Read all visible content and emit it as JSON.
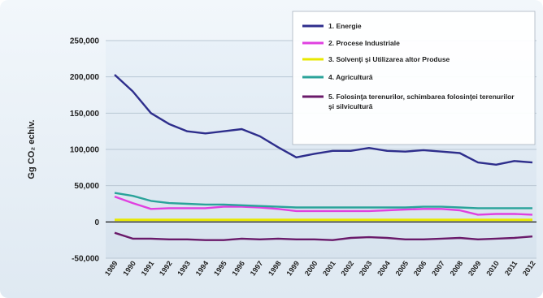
{
  "chart_data": {
    "type": "line",
    "title": "",
    "xlabel": "",
    "ylabel": "Gg CO₂ echiv.",
    "ylim": [
      -50000,
      250000
    ],
    "yticks": [
      "250,000",
      "200,000",
      "150,000",
      "100,000",
      "50,000",
      "0",
      "-50,000"
    ],
    "x": [
      1989,
      1990,
      1991,
      1992,
      1993,
      1994,
      1995,
      1996,
      1997,
      1998,
      1999,
      2000,
      2001,
      2002,
      2003,
      2004,
      2005,
      2006,
      2007,
      2008,
      2009,
      2010,
      2011,
      2012
    ],
    "grid": true,
    "legend_position": "top-right",
    "series": [
      {
        "name": "1. Energie",
        "color": "#2e2e8c",
        "values": [
          203000,
          180000,
          150000,
          135000,
          125000,
          122000,
          125000,
          128000,
          118000,
          103000,
          89000,
          94000,
          98000,
          98000,
          102000,
          98000,
          97000,
          99000,
          97000,
          95000,
          82000,
          79000,
          84000,
          82000
        ]
      },
      {
        "name": "2. Procese Industriale",
        "color": "#e040e0",
        "values": [
          35000,
          26000,
          18000,
          19000,
          19000,
          19000,
          21000,
          21000,
          20000,
          18000,
          15000,
          15000,
          15000,
          15000,
          15000,
          16000,
          17000,
          18000,
          18000,
          16000,
          10000,
          11000,
          11000,
          10000
        ]
      },
      {
        "name": "3. Solvenţi şi Utilizarea altor Produse",
        "color": "#e8e800",
        "values": [
          3000,
          3000,
          3000,
          3000,
          3000,
          3000,
          3000,
          3000,
          3000,
          3000,
          3000,
          3000,
          3000,
          3000,
          3000,
          3000,
          3000,
          3000,
          3000,
          3000,
          3000,
          3000,
          3000,
          3000
        ]
      },
      {
        "name": "4. Agricultură",
        "color": "#2aa39a",
        "values": [
          40000,
          36000,
          29000,
          26000,
          25000,
          24000,
          24000,
          23000,
          22000,
          21000,
          20000,
          20000,
          20000,
          20000,
          20000,
          20000,
          20000,
          21000,
          21000,
          20000,
          19000,
          19000,
          19000,
          19000
        ]
      },
      {
        "name": "5. Folosinţa terenurilor, schimbarea folosinţei terenurilor şi silvicultură",
        "color": "#6a1a6a",
        "values": [
          -15000,
          -23000,
          -23000,
          -24000,
          -24000,
          -25000,
          -25000,
          -23000,
          -24000,
          -23000,
          -24000,
          -24000,
          -25000,
          -22000,
          -21000,
          -22000,
          -24000,
          -24000,
          -23000,
          -22000,
          -24000,
          -23000,
          -22000,
          -20000
        ]
      }
    ]
  }
}
